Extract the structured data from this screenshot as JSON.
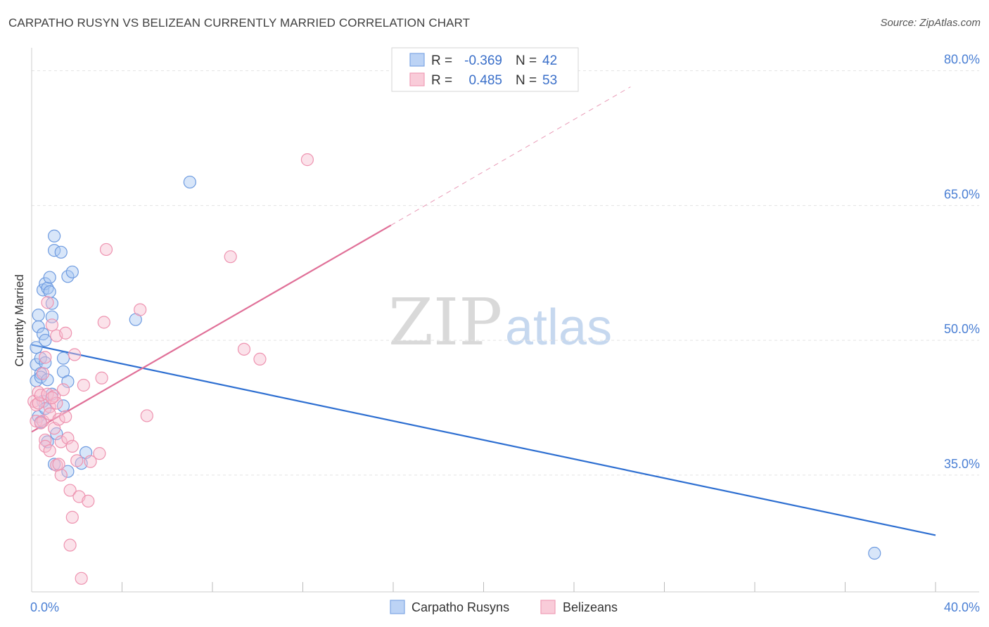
{
  "title": "CARPATHO RUSYN VS BELIZEAN CURRENTLY MARRIED CORRELATION CHART",
  "source": "Source: ZipAtlas.com",
  "watermark": {
    "zip": "ZIP",
    "atlas": "atlas"
  },
  "colors": {
    "blue_fill": "#a9c8f2",
    "blue_stroke": "#6e9be0",
    "blue_line": "#2e6fd1",
    "pink_fill": "#f7bfd0",
    "pink_stroke": "#ee93b0",
    "pink_line": "#e07098",
    "grid": "#e3e3e3",
    "tick_text": "#4a7fd4"
  },
  "legend": {
    "rows": [
      {
        "r_label": "R =",
        "r_value": "-0.369",
        "n_label": "N =",
        "n_value": "42",
        "series": "blue"
      },
      {
        "r_label": "R =",
        "r_value": "0.485",
        "n_label": "N =",
        "n_value": "53",
        "series": "pink"
      }
    ]
  },
  "chart_data": {
    "type": "scatter",
    "title": "CARPATHO RUSYN VS BELIZEAN CURRENTLY MARRIED CORRELATION CHART",
    "xlabel": "",
    "ylabel": "Currently Married",
    "xlim": [
      0,
      40
    ],
    "ylim": [
      22,
      82
    ],
    "x_tick_labels": [
      {
        "value": 0,
        "label": "0.0%"
      },
      {
        "value": 40,
        "label": "40.0%"
      }
    ],
    "y_tick_labels": [
      {
        "value": 35,
        "label": "35.0%"
      },
      {
        "value": 50,
        "label": "50.0%"
      },
      {
        "value": 65,
        "label": "65.0%"
      },
      {
        "value": 80,
        "label": "80.0%"
      }
    ],
    "series": [
      {
        "name": "Carpatho Rusyns",
        "color": "blue",
        "points": [
          [
            0.2,
            47.3
          ],
          [
            0.2,
            45.5
          ],
          [
            0.3,
            52.8
          ],
          [
            0.3,
            51.5
          ],
          [
            0.4,
            48.0
          ],
          [
            0.4,
            46.3
          ],
          [
            0.4,
            45.9
          ],
          [
            0.5,
            50.7
          ],
          [
            0.5,
            55.6
          ],
          [
            0.6,
            56.3
          ],
          [
            0.6,
            50.0
          ],
          [
            0.6,
            47.5
          ],
          [
            0.7,
            55.8
          ],
          [
            0.7,
            45.6
          ],
          [
            0.8,
            55.4
          ],
          [
            0.8,
            57.0
          ],
          [
            0.9,
            54.1
          ],
          [
            0.9,
            52.6
          ],
          [
            0.9,
            44.0
          ],
          [
            1.0,
            60.0
          ],
          [
            1.0,
            61.6
          ],
          [
            1.0,
            36.2
          ],
          [
            1.1,
            39.6
          ],
          [
            1.3,
            59.8
          ],
          [
            1.4,
            42.7
          ],
          [
            1.4,
            48.0
          ],
          [
            1.4,
            46.5
          ],
          [
            1.6,
            57.1
          ],
          [
            1.6,
            45.4
          ],
          [
            1.6,
            35.4
          ],
          [
            1.8,
            57.6
          ],
          [
            2.2,
            36.3
          ],
          [
            2.4,
            37.5
          ],
          [
            4.6,
            52.3
          ],
          [
            7.0,
            67.6
          ],
          [
            37.3,
            26.3
          ],
          [
            0.3,
            41.5
          ],
          [
            0.5,
            43.2
          ],
          [
            0.7,
            38.7
          ],
          [
            0.4,
            40.9
          ],
          [
            0.6,
            42.4
          ],
          [
            0.2,
            49.2
          ]
        ]
      },
      {
        "name": "Belizeans",
        "color": "pink",
        "points": [
          [
            0.1,
            43.2
          ],
          [
            0.2,
            42.8
          ],
          [
            0.2,
            41.0
          ],
          [
            0.3,
            44.2
          ],
          [
            0.3,
            43.0
          ],
          [
            0.4,
            43.9
          ],
          [
            0.5,
            46.3
          ],
          [
            0.5,
            41.0
          ],
          [
            0.6,
            38.9
          ],
          [
            0.6,
            38.2
          ],
          [
            0.6,
            48.1
          ],
          [
            0.7,
            54.2
          ],
          [
            0.7,
            44.0
          ],
          [
            0.8,
            42.6
          ],
          [
            0.8,
            41.8
          ],
          [
            0.8,
            37.7
          ],
          [
            0.9,
            51.7
          ],
          [
            1.0,
            43.8
          ],
          [
            1.0,
            40.2
          ],
          [
            1.1,
            43.0
          ],
          [
            1.1,
            50.5
          ],
          [
            1.1,
            36.1
          ],
          [
            1.2,
            41.2
          ],
          [
            1.3,
            38.7
          ],
          [
            1.3,
            35.0
          ],
          [
            1.4,
            44.5
          ],
          [
            1.5,
            50.8
          ],
          [
            1.5,
            41.5
          ],
          [
            1.6,
            39.1
          ],
          [
            1.7,
            27.2
          ],
          [
            1.7,
            33.3
          ],
          [
            1.8,
            30.3
          ],
          [
            1.8,
            38.2
          ],
          [
            1.9,
            48.4
          ],
          [
            2.0,
            36.6
          ],
          [
            2.1,
            32.6
          ],
          [
            2.2,
            23.5
          ],
          [
            2.3,
            45.0
          ],
          [
            2.5,
            32.1
          ],
          [
            2.6,
            36.5
          ],
          [
            3.0,
            37.4
          ],
          [
            3.1,
            45.8
          ],
          [
            3.2,
            52.0
          ],
          [
            3.3,
            60.1
          ],
          [
            4.8,
            53.4
          ],
          [
            5.1,
            41.6
          ],
          [
            8.8,
            59.3
          ],
          [
            9.4,
            49.0
          ],
          [
            10.1,
            47.9
          ],
          [
            12.2,
            70.1
          ],
          [
            0.4,
            40.8
          ],
          [
            0.9,
            43.6
          ],
          [
            1.2,
            36.2
          ]
        ]
      }
    ],
    "trend_lines": [
      {
        "series": "Carpatho Rusyns",
        "x": [
          0,
          40
        ],
        "y": [
          49.5,
          28.3
        ],
        "style": "solid"
      },
      {
        "series": "Belizeans",
        "x": [
          0,
          15.9
        ],
        "y": [
          39.8,
          62.8
        ],
        "style": "solid"
      },
      {
        "series": "Belizeans",
        "x": [
          15.9,
          26.5
        ],
        "y": [
          62.8,
          78.2
        ],
        "style": "dashed"
      }
    ],
    "grid": true,
    "legend_position": "top-center"
  },
  "bottom_legend": [
    {
      "label": "Carpatho Rusyns",
      "color": "blue"
    },
    {
      "label": "Belizeans",
      "color": "pink"
    }
  ]
}
